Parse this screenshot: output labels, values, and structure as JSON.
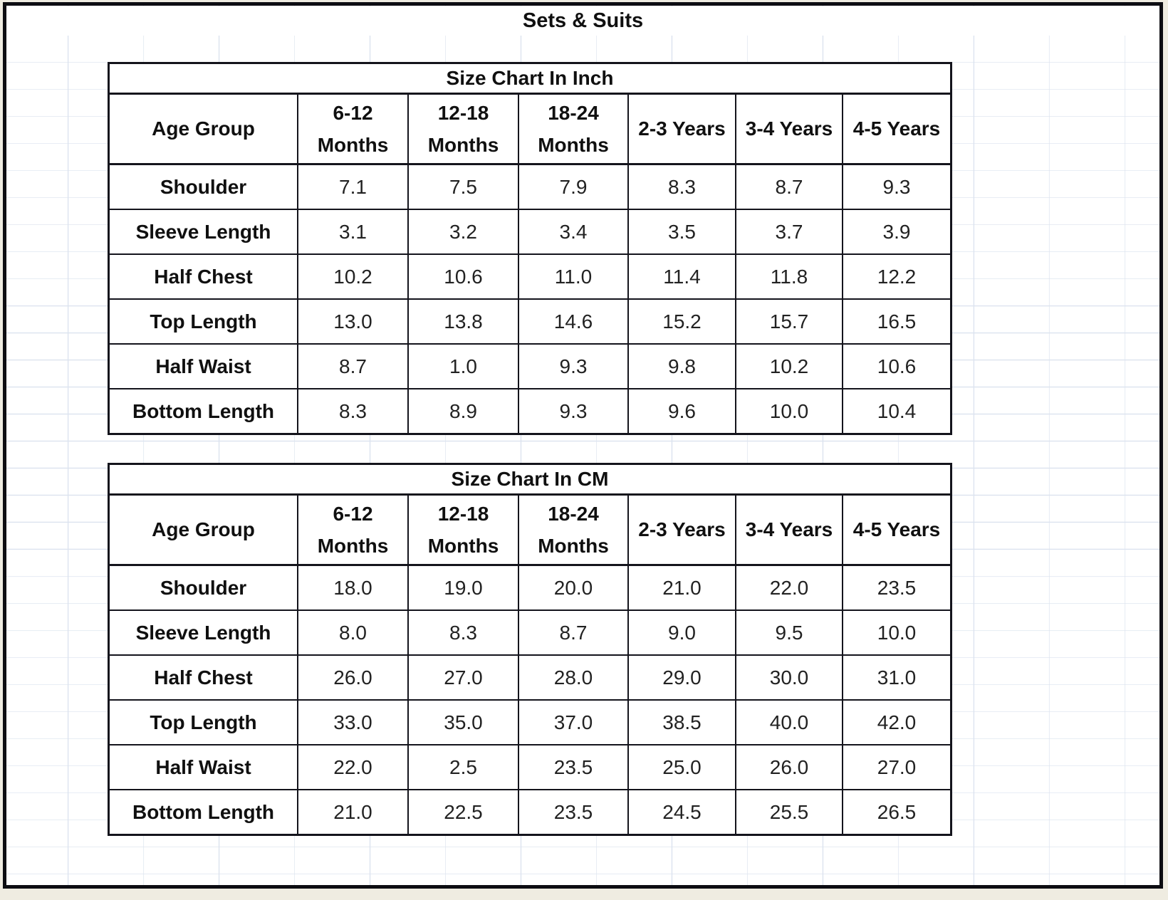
{
  "page": {
    "title": "Sets & Suits"
  },
  "colors": {
    "table_border": "#14141c",
    "gridline": "#dce3ef",
    "page_margin": "#efece1",
    "sheet_background": "#ffffff",
    "text": "#101010"
  },
  "tables": [
    {
      "title": "Size Chart In Inch",
      "columns": [
        "Age Group",
        "6-12 Months",
        "12-18 Months",
        "18-24 Months",
        "2-3 Years",
        "3-4 Years",
        "4-5 Years"
      ],
      "rows": [
        {
          "label": "Shoulder",
          "values": [
            "7.1",
            "7.5",
            "7.9",
            "8.3",
            "8.7",
            "9.3"
          ]
        },
        {
          "label": "Sleeve Length",
          "values": [
            "3.1",
            "3.2",
            "3.4",
            "3.5",
            "3.7",
            "3.9"
          ]
        },
        {
          "label": "Half Chest",
          "values": [
            "10.2",
            "10.6",
            "11.0",
            "11.4",
            "11.8",
            "12.2"
          ]
        },
        {
          "label": "Top Length",
          "values": [
            "13.0",
            "13.8",
            "14.6",
            "15.2",
            "15.7",
            "16.5"
          ]
        },
        {
          "label": "Half Waist",
          "values": [
            "8.7",
            "1.0",
            "9.3",
            "9.8",
            "10.2",
            "10.6"
          ]
        },
        {
          "label": "Bottom Length",
          "values": [
            "8.3",
            "8.9",
            "9.3",
            "9.6",
            "10.0",
            "10.4"
          ]
        }
      ]
    },
    {
      "title": "Size Chart In CM",
      "columns": [
        "Age Group",
        "6-12 Months",
        "12-18 Months",
        "18-24 Months",
        "2-3 Years",
        "3-4 Years",
        "4-5 Years"
      ],
      "rows": [
        {
          "label": "Shoulder",
          "values": [
            "18.0",
            "19.0",
            "20.0",
            "21.0",
            "22.0",
            "23.5"
          ]
        },
        {
          "label": "Sleeve Length",
          "values": [
            "8.0",
            "8.3",
            "8.7",
            "9.0",
            "9.5",
            "10.0"
          ]
        },
        {
          "label": "Half Chest",
          "values": [
            "26.0",
            "27.0",
            "28.0",
            "29.0",
            "30.0",
            "31.0"
          ]
        },
        {
          "label": "Top Length",
          "values": [
            "33.0",
            "35.0",
            "37.0",
            "38.5",
            "40.0",
            "42.0"
          ]
        },
        {
          "label": "Half Waist",
          "values": [
            "22.0",
            "2.5",
            "23.5",
            "25.0",
            "26.0",
            "27.0"
          ]
        },
        {
          "label": "Bottom Length",
          "values": [
            "21.0",
            "22.5",
            "23.5",
            "24.5",
            "25.5",
            "26.5"
          ]
        }
      ]
    }
  ]
}
